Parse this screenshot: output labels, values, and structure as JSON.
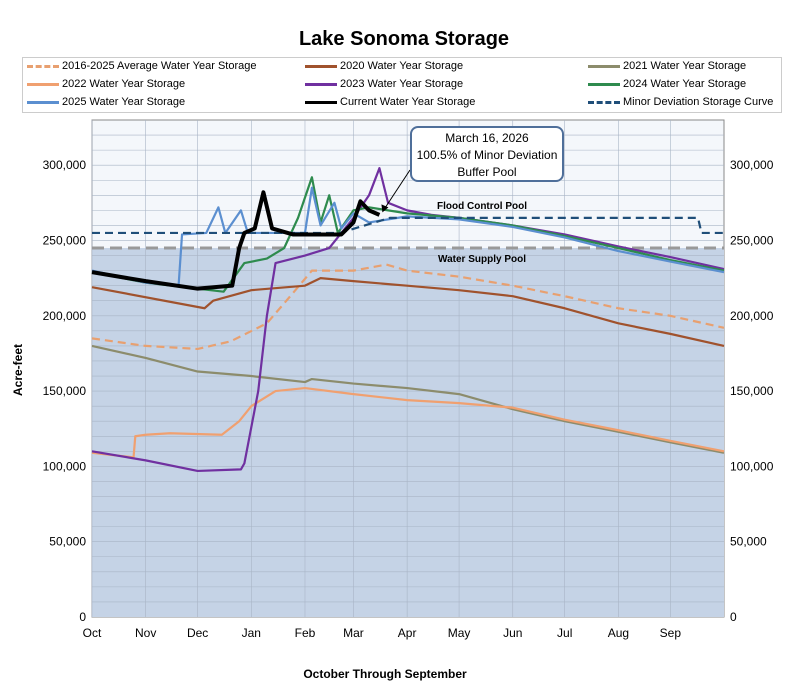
{
  "chart_data": {
    "type": "line",
    "title": "Lake Sonoma Storage",
    "xlabel": "October Through September",
    "ylabel": "Acre-feet",
    "ylim": [
      0,
      330000
    ],
    "yticks": [
      0,
      50000,
      100000,
      150000,
      200000,
      250000,
      300000
    ],
    "ytick_labels": [
      "0",
      "50,000",
      "100,000",
      "150,000",
      "200,000",
      "250,000",
      "300,000"
    ],
    "xlim_days": [
      0,
      365
    ],
    "month_labels": [
      "Oct",
      "Nov",
      "Dec",
      "Jan",
      "Feb",
      "Mar",
      "Apr",
      "May",
      "Jun",
      "Jul",
      "Aug",
      "Sep"
    ],
    "pools": {
      "water_supply_top": 245000,
      "flood_control_label": "Flood Control Pool",
      "water_supply_label": "Water Supply Pool"
    },
    "annotation": {
      "lines": [
        "March 16, 2026",
        "100.5% of Minor Deviation",
        "Buffer Pool"
      ],
      "day": 166,
      "value": 266000
    },
    "series": [
      {
        "name": "2016-2025 Average Water Year Storage",
        "color": "#e8a070",
        "dash": true,
        "points": [
          [
            0,
            185000
          ],
          [
            31,
            180000
          ],
          [
            61,
            178000
          ],
          [
            80,
            183000
          ],
          [
            101,
            195000
          ],
          [
            116,
            215000
          ],
          [
            127,
            230000
          ],
          [
            151,
            230000
          ],
          [
            170,
            234000
          ],
          [
            182,
            230000
          ],
          [
            212,
            226000
          ],
          [
            243,
            220000
          ],
          [
            273,
            213000
          ],
          [
            304,
            205000
          ],
          [
            334,
            200000
          ],
          [
            365,
            192000
          ]
        ]
      },
      {
        "name": "2020 Water Year Storage",
        "color": "#a0522d",
        "dash": false,
        "points": [
          [
            0,
            219000
          ],
          [
            65,
            205000
          ],
          [
            70,
            210000
          ],
          [
            92,
            217000
          ],
          [
            123,
            220000
          ],
          [
            132,
            225000
          ],
          [
            151,
            223000
          ],
          [
            182,
            220000
          ],
          [
            212,
            217000
          ],
          [
            243,
            213000
          ],
          [
            273,
            205000
          ],
          [
            304,
            195000
          ],
          [
            334,
            188000
          ],
          [
            365,
            180000
          ]
        ]
      },
      {
        "name": "2021 Water Year Storage",
        "color": "#8c8c6c",
        "dash": false,
        "points": [
          [
            0,
            180000
          ],
          [
            31,
            172000
          ],
          [
            61,
            163000
          ],
          [
            92,
            160000
          ],
          [
            123,
            156000
          ],
          [
            127,
            158000
          ],
          [
            151,
            155000
          ],
          [
            182,
            152000
          ],
          [
            212,
            148000
          ],
          [
            243,
            138000
          ],
          [
            273,
            130000
          ],
          [
            304,
            123000
          ],
          [
            334,
            116000
          ],
          [
            365,
            109000
          ]
        ]
      },
      {
        "name": "2022 Water Year Storage",
        "color": "#f0a070",
        "dash": false,
        "points": [
          [
            0,
            109000
          ],
          [
            24,
            106000
          ],
          [
            25,
            120000
          ],
          [
            31,
            121000
          ],
          [
            45,
            122000
          ],
          [
            75,
            121000
          ],
          [
            85,
            130000
          ],
          [
            92,
            140000
          ],
          [
            106,
            150000
          ],
          [
            123,
            152000
          ],
          [
            151,
            148000
          ],
          [
            182,
            144000
          ],
          [
            212,
            142000
          ],
          [
            243,
            139000
          ],
          [
            273,
            131000
          ],
          [
            304,
            124000
          ],
          [
            334,
            117000
          ],
          [
            365,
            110000
          ]
        ]
      },
      {
        "name": "2023 Water Year Storage",
        "color": "#7030a0",
        "dash": false,
        "points": [
          [
            0,
            110000
          ],
          [
            31,
            104000
          ],
          [
            61,
            97000
          ],
          [
            86,
            98000
          ],
          [
            88,
            102000
          ],
          [
            96,
            150000
          ],
          [
            101,
            200000
          ],
          [
            106,
            235000
          ],
          [
            123,
            240000
          ],
          [
            137,
            245000
          ],
          [
            151,
            265000
          ],
          [
            160,
            280000
          ],
          [
            166,
            298000
          ],
          [
            171,
            275000
          ],
          [
            182,
            270000
          ],
          [
            196,
            267000
          ],
          [
            212,
            265000
          ],
          [
            243,
            260000
          ],
          [
            273,
            254000
          ],
          [
            304,
            246000
          ],
          [
            334,
            239000
          ],
          [
            365,
            231000
          ]
        ]
      },
      {
        "name": "2024 Water Year Storage",
        "color": "#2e8b4e",
        "dash": false,
        "points": [
          [
            0,
            229000
          ],
          [
            31,
            222000
          ],
          [
            61,
            218000
          ],
          [
            76,
            216000
          ],
          [
            88,
            235000
          ],
          [
            101,
            238000
          ],
          [
            111,
            245000
          ],
          [
            119,
            265000
          ],
          [
            127,
            292000
          ],
          [
            132,
            262000
          ],
          [
            137,
            280000
          ],
          [
            142,
            255000
          ],
          [
            151,
            270000
          ],
          [
            160,
            272000
          ],
          [
            182,
            268000
          ],
          [
            212,
            265000
          ],
          [
            243,
            260000
          ],
          [
            273,
            253000
          ],
          [
            304,
            245000
          ],
          [
            334,
            237000
          ],
          [
            365,
            230000
          ]
        ]
      },
      {
        "name": "2025 Water Year Storage",
        "color": "#5b8fd0",
        "dash": false,
        "points": [
          [
            0,
            230000
          ],
          [
            31,
            222000
          ],
          [
            50,
            220000
          ],
          [
            52,
            254000
          ],
          [
            66,
            255000
          ],
          [
            73,
            272000
          ],
          [
            77,
            255000
          ],
          [
            86,
            270000
          ],
          [
            90,
            255000
          ],
          [
            111,
            255000
          ],
          [
            123,
            255000
          ],
          [
            127,
            285000
          ],
          [
            132,
            260000
          ],
          [
            140,
            275000
          ],
          [
            144,
            258000
          ],
          [
            151,
            268000
          ],
          [
            160,
            262000
          ],
          [
            182,
            266000
          ],
          [
            212,
            264000
          ],
          [
            243,
            259000
          ],
          [
            273,
            252000
          ],
          [
            304,
            243000
          ],
          [
            334,
            236000
          ],
          [
            365,
            229000
          ]
        ]
      },
      {
        "name": "Current Water Year Storage",
        "color": "#000000",
        "dash": false,
        "points": [
          [
            0,
            229000
          ],
          [
            31,
            223000
          ],
          [
            61,
            218000
          ],
          [
            81,
            220000
          ],
          [
            85,
            245000
          ],
          [
            88,
            255000
          ],
          [
            94,
            258000
          ],
          [
            99,
            282000
          ],
          [
            104,
            258000
          ],
          [
            116,
            254000
          ],
          [
            144,
            254000
          ],
          [
            151,
            262000
          ],
          [
            155,
            276000
          ],
          [
            160,
            270000
          ],
          [
            166,
            267000
          ]
        ]
      },
      {
        "name": "Minor Deviation Storage Curve",
        "color": "#1f4e79",
        "dash": true,
        "points": [
          [
            0,
            255000
          ],
          [
            143,
            255000
          ],
          [
            172,
            265000
          ],
          [
            350,
            265000
          ],
          [
            352,
            255000
          ],
          [
            365,
            255000
          ]
        ]
      }
    ],
    "water_supply_line": {
      "value": 245000,
      "color": "#999999"
    }
  }
}
